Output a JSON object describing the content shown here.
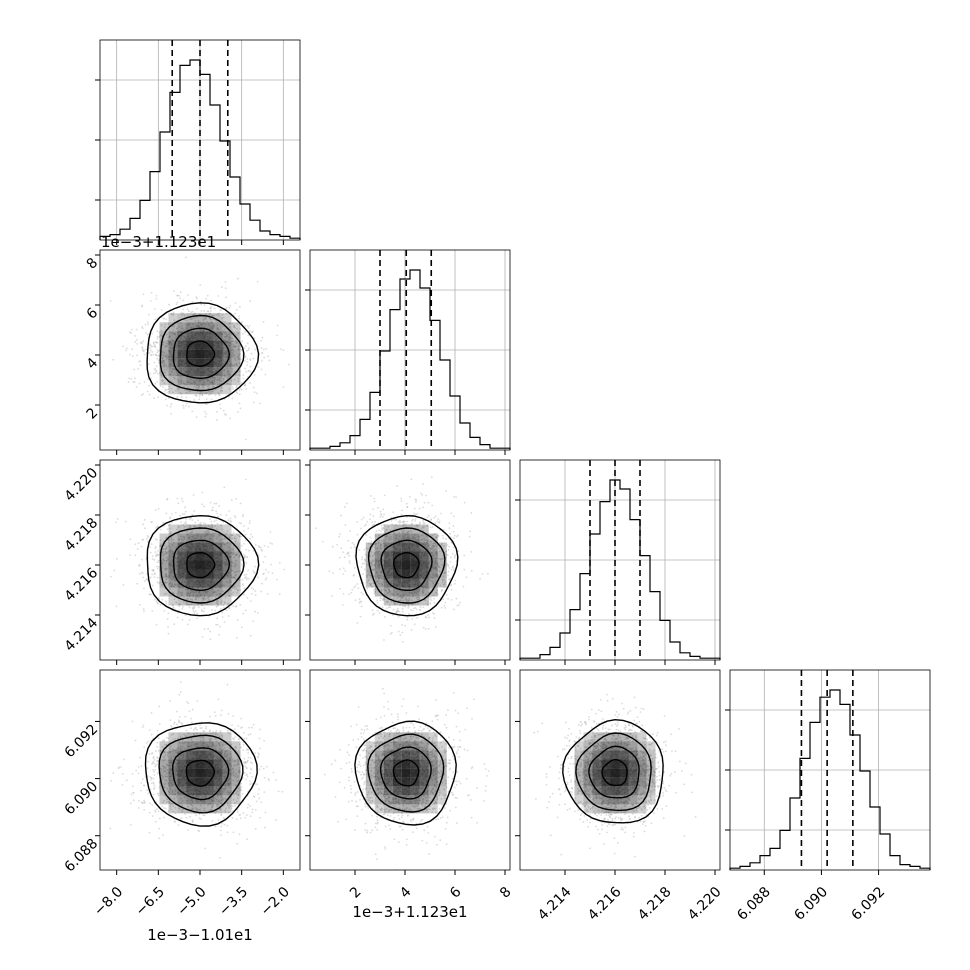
{
  "chart_data": {
    "type": "corner",
    "parameters": [
      {
        "offset_label": "1e−3−1.01e1",
        "ticks": [
          "−8.0",
          "−6.5",
          "−5.0",
          "−3.5",
          "−2.0"
        ],
        "tick_values": [
          -8.0,
          -6.5,
          -5.0,
          -3.5,
          -2.0
        ],
        "range": [
          -8.6,
          -1.4
        ]
      },
      {
        "offset_label": "1e−3+1.123e1",
        "ticks": [
          "2",
          "4",
          "6",
          "8"
        ],
        "tick_values": [
          2,
          4,
          6,
          8
        ],
        "range": [
          0.2,
          8.2
        ]
      },
      {
        "offset_label": "",
        "ticks": [
          "4.214",
          "4.216",
          "4.218",
          "4.220"
        ],
        "tick_values": [
          4.214,
          4.216,
          4.218,
          4.22
        ],
        "range": [
          4.2122,
          4.2202
        ]
      },
      {
        "offset_label": "",
        "ticks": [
          "6.088",
          "6.090",
          "6.092"
        ],
        "tick_values": [
          6.088,
          6.09,
          6.092
        ],
        "range": [
          6.0868,
          6.0938
        ]
      }
    ],
    "histograms": [
      {
        "counts": [
          2,
          3,
          6,
          12,
          22,
          38,
          60,
          82,
          97,
          100,
          92,
          75,
          55,
          35,
          20,
          11,
          5,
          3,
          2,
          1
        ],
        "quantiles": [
          -6.0,
          -5.0,
          -4.0
        ]
      },
      {
        "counts": [
          1,
          1,
          2,
          4,
          8,
          17,
          32,
          55,
          78,
          95,
          100,
          90,
          72,
          50,
          30,
          15,
          7,
          3,
          1,
          1
        ],
        "quantiles": [
          3.0,
          4.05,
          5.05
        ]
      },
      {
        "counts": [
          1,
          1,
          3,
          7,
          15,
          28,
          48,
          70,
          88,
          100,
          95,
          78,
          58,
          38,
          22,
          10,
          4,
          2,
          1,
          1
        ],
        "quantiles": [
          4.215,
          4.216,
          4.217
        ]
      },
      {
        "counts": [
          1,
          2,
          4,
          8,
          12,
          22,
          40,
          62,
          82,
          96,
          100,
          92,
          75,
          55,
          35,
          20,
          8,
          3,
          2,
          1
        ],
        "quantiles": [
          6.0893,
          6.0902,
          6.0911
        ]
      }
    ],
    "correlations": [
      {
        "row": 1,
        "col": 0,
        "center": [
          -5.0,
          4.05
        ],
        "sigma": [
          1.0,
          1.0
        ]
      },
      {
        "row": 2,
        "col": 0,
        "center": [
          -5.0,
          4.216
        ],
        "sigma": [
          1.0,
          0.001
        ]
      },
      {
        "row": 2,
        "col": 1,
        "center": [
          4.05,
          4.216
        ],
        "sigma": [
          1.0,
          0.001
        ]
      },
      {
        "row": 3,
        "col": 0,
        "center": [
          -5.0,
          6.0902
        ],
        "sigma": [
          1.0,
          0.0009
        ]
      },
      {
        "row": 3,
        "col": 1,
        "center": [
          4.05,
          6.0902
        ],
        "sigma": [
          1.0,
          0.0009
        ]
      },
      {
        "row": 3,
        "col": 2,
        "center": [
          4.216,
          6.0902
        ],
        "sigma": [
          0.001,
          0.0009
        ]
      }
    ],
    "contour_levels_sigma": [
      0.5,
      1.0,
      1.5,
      2.0
    ],
    "grid": true,
    "colors": {
      "points": "#bdbdbd",
      "lines": "#000000",
      "density": "#000000",
      "grid": "#b0b0b0"
    }
  }
}
